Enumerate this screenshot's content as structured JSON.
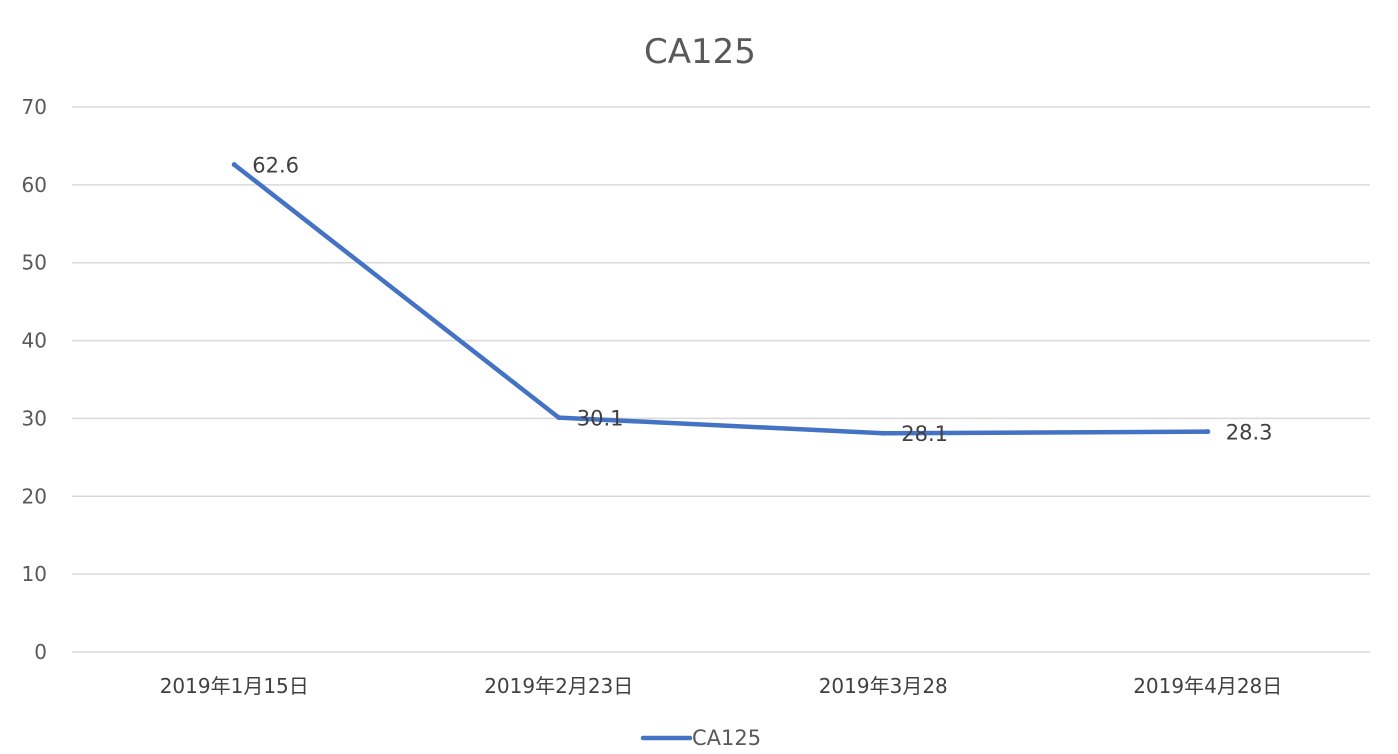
{
  "chart_data": {
    "type": "line",
    "title": "CA125",
    "categories": [
      "2019年1月15日",
      "2019年2月23日",
      "2019年3月28",
      "2019年4月28日"
    ],
    "series": [
      {
        "name": "CA125",
        "values": [
          62.6,
          30.1,
          28.1,
          28.3
        ],
        "color": "#4472c4"
      }
    ],
    "data_labels": [
      "62.6",
      "30.1",
      "28.1",
      "28.3"
    ],
    "ylim": [
      0,
      70
    ],
    "yticks": [
      0,
      10,
      20,
      30,
      40,
      50,
      60,
      70
    ],
    "ytick_labels": [
      "0",
      "10",
      "20",
      "30",
      "40",
      "50",
      "60",
      "70"
    ],
    "grid": true,
    "legend": {
      "position": "bottom",
      "entries": [
        "CA125"
      ]
    }
  }
}
